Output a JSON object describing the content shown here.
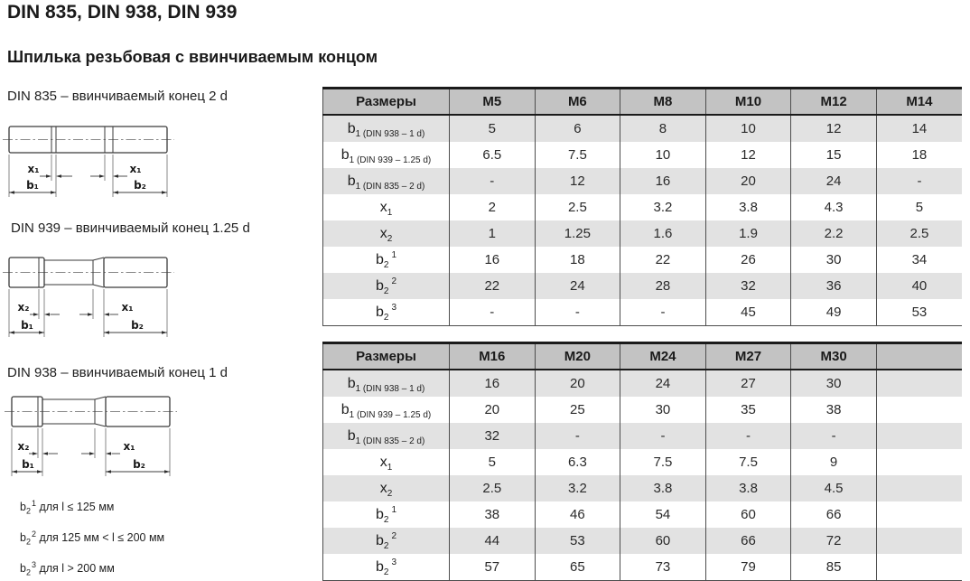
{
  "page": {
    "title": "DIN 835, DIN 938, DIN 939",
    "subtitle": "Шпилька резьбовая с ввинчиваемым концом"
  },
  "drawings": [
    {
      "caption": "DIN 835 – ввинчиваемый конец 2 d",
      "dim_labels": {
        "left_x": "x₁",
        "left_b": "b₁",
        "right_x": "x₁",
        "right_b": "b₂"
      }
    },
    {
      "caption": "DIN 939 – ввинчиваемый конец 1.25 d",
      "dim_labels": {
        "left_x": "x₂",
        "left_b": "b₁",
        "right_x": "x₁",
        "right_b": "b₂"
      }
    },
    {
      "caption": "DIN 938 – ввинчиваемый конец 1 d",
      "dim_labels": {
        "left_x": "x₂",
        "left_b": "b₁",
        "right_x": "x₁",
        "right_b": "b₂"
      }
    }
  ],
  "footnotes": [
    "b_{2}^{1} для l ≤ 125 мм",
    "b_{2}^{2} для 125 мм < l ≤ 200 мм",
    "b_{2}^{3} для l > 200 мм"
  ],
  "tables": [
    {
      "name": "sizes-m5-m14",
      "columns": [
        "Размеры",
        "M5",
        "M6",
        "M8",
        "M10",
        "M12",
        "M14"
      ],
      "rows": [
        {
          "label": "b_{1 (DIN 938 – 1 d)}",
          "values": [
            "5",
            "6",
            "8",
            "10",
            "12",
            "14"
          ],
          "shaded": true
        },
        {
          "label": "b_{1 (DIN 939 – 1.25 d)}",
          "values": [
            "6.5",
            "7.5",
            "10",
            "12",
            "15",
            "18"
          ],
          "shaded": false
        },
        {
          "label": "b_{1 (DIN 835 – 2 d)}",
          "values": [
            "-",
            "12",
            "16",
            "20",
            "24",
            "-"
          ],
          "shaded": true
        },
        {
          "label": "x_{1}",
          "values": [
            "2",
            "2.5",
            "3.2",
            "3.8",
            "4.3",
            "5"
          ],
          "shaded": false
        },
        {
          "label": "x_{2}",
          "values": [
            "1",
            "1.25",
            "1.6",
            "1.9",
            "2.2",
            "2.5"
          ],
          "shaded": true
        },
        {
          "label": "b_{2}^{1}",
          "values": [
            "16",
            "18",
            "22",
            "26",
            "30",
            "34"
          ],
          "shaded": false
        },
        {
          "label": "b_{2}^{2}",
          "values": [
            "22",
            "24",
            "28",
            "32",
            "36",
            "40"
          ],
          "shaded": true
        },
        {
          "label": "b_{2}^{3}",
          "values": [
            "-",
            "-",
            "-",
            "45",
            "49",
            "53"
          ],
          "shaded": false
        }
      ]
    },
    {
      "name": "sizes-m16-m30",
      "columns": [
        "Размеры",
        "M16",
        "M20",
        "M24",
        "M27",
        "M30",
        ""
      ],
      "rows": [
        {
          "label": "b_{1 (DIN 938 – 1 d)}",
          "values": [
            "16",
            "20",
            "24",
            "27",
            "30",
            ""
          ],
          "shaded": true
        },
        {
          "label": "b_{1 (DIN 939 – 1.25 d)}",
          "values": [
            "20",
            "25",
            "30",
            "35",
            "38",
            ""
          ],
          "shaded": false
        },
        {
          "label": "b_{1 (DIN 835 – 2 d)}",
          "values": [
            "32",
            "-",
            "-",
            "-",
            "-",
            ""
          ],
          "shaded": true
        },
        {
          "label": "x_{1}",
          "values": [
            "5",
            "6.3",
            "7.5",
            "7.5",
            "9",
            ""
          ],
          "shaded": false
        },
        {
          "label": "x_{2}",
          "values": [
            "2.5",
            "3.2",
            "3.8",
            "3.8",
            "4.5",
            ""
          ],
          "shaded": true
        },
        {
          "label": "b_{2}^{1}",
          "values": [
            "38",
            "46",
            "54",
            "60",
            "66",
            ""
          ],
          "shaded": false
        },
        {
          "label": "b_{2}^{2}",
          "values": [
            "44",
            "53",
            "60",
            "66",
            "72",
            ""
          ],
          "shaded": true
        },
        {
          "label": "b_{2}^{3}",
          "values": [
            "57",
            "65",
            "73",
            "79",
            "85",
            ""
          ],
          "shaded": false
        }
      ]
    }
  ],
  "colors": {
    "header_bg": "#c3c3c3",
    "stripe_bg": "#e2e2e2",
    "border_dark": "#1a1a1a",
    "grid_line": "#4d4d4d"
  }
}
